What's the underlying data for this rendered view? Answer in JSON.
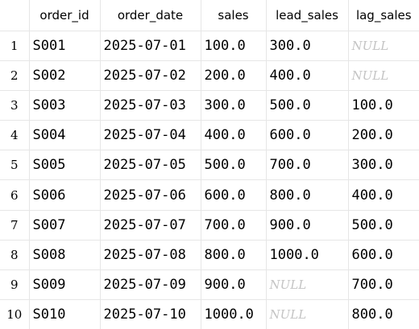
{
  "columns": [
    "order_id",
    "order_date",
    "sales",
    "lead_sales",
    "lag_sales"
  ],
  "rows": [
    {
      "n": "1",
      "cells": [
        "S001",
        "2025-07-01",
        "100.0",
        "300.0",
        "NULL"
      ]
    },
    {
      "n": "2",
      "cells": [
        "S002",
        "2025-07-02",
        "200.0",
        "400.0",
        "NULL"
      ]
    },
    {
      "n": "3",
      "cells": [
        "S003",
        "2025-07-03",
        "300.0",
        "500.0",
        "100.0"
      ]
    },
    {
      "n": "4",
      "cells": [
        "S004",
        "2025-07-04",
        "400.0",
        "600.0",
        "200.0"
      ]
    },
    {
      "n": "5",
      "cells": [
        "S005",
        "2025-07-05",
        "500.0",
        "700.0",
        "300.0"
      ]
    },
    {
      "n": "6",
      "cells": [
        "S006",
        "2025-07-06",
        "600.0",
        "800.0",
        "400.0"
      ]
    },
    {
      "n": "7",
      "cells": [
        "S007",
        "2025-07-07",
        "700.0",
        "900.0",
        "500.0"
      ]
    },
    {
      "n": "8",
      "cells": [
        "S008",
        "2025-07-08",
        "800.0",
        "1000.0",
        "600.0"
      ]
    },
    {
      "n": "9",
      "cells": [
        "S009",
        "2025-07-09",
        "900.0",
        "NULL",
        "700.0"
      ]
    },
    {
      "n": "10",
      "cells": [
        "S010",
        "2025-07-10",
        "1000.0",
        "NULL",
        "800.0"
      ]
    }
  ],
  "colors": {
    "grid_line": "#e6e6e6",
    "null_text": "#c4c4c4",
    "text": "#000000",
    "background": "#ffffff"
  }
}
